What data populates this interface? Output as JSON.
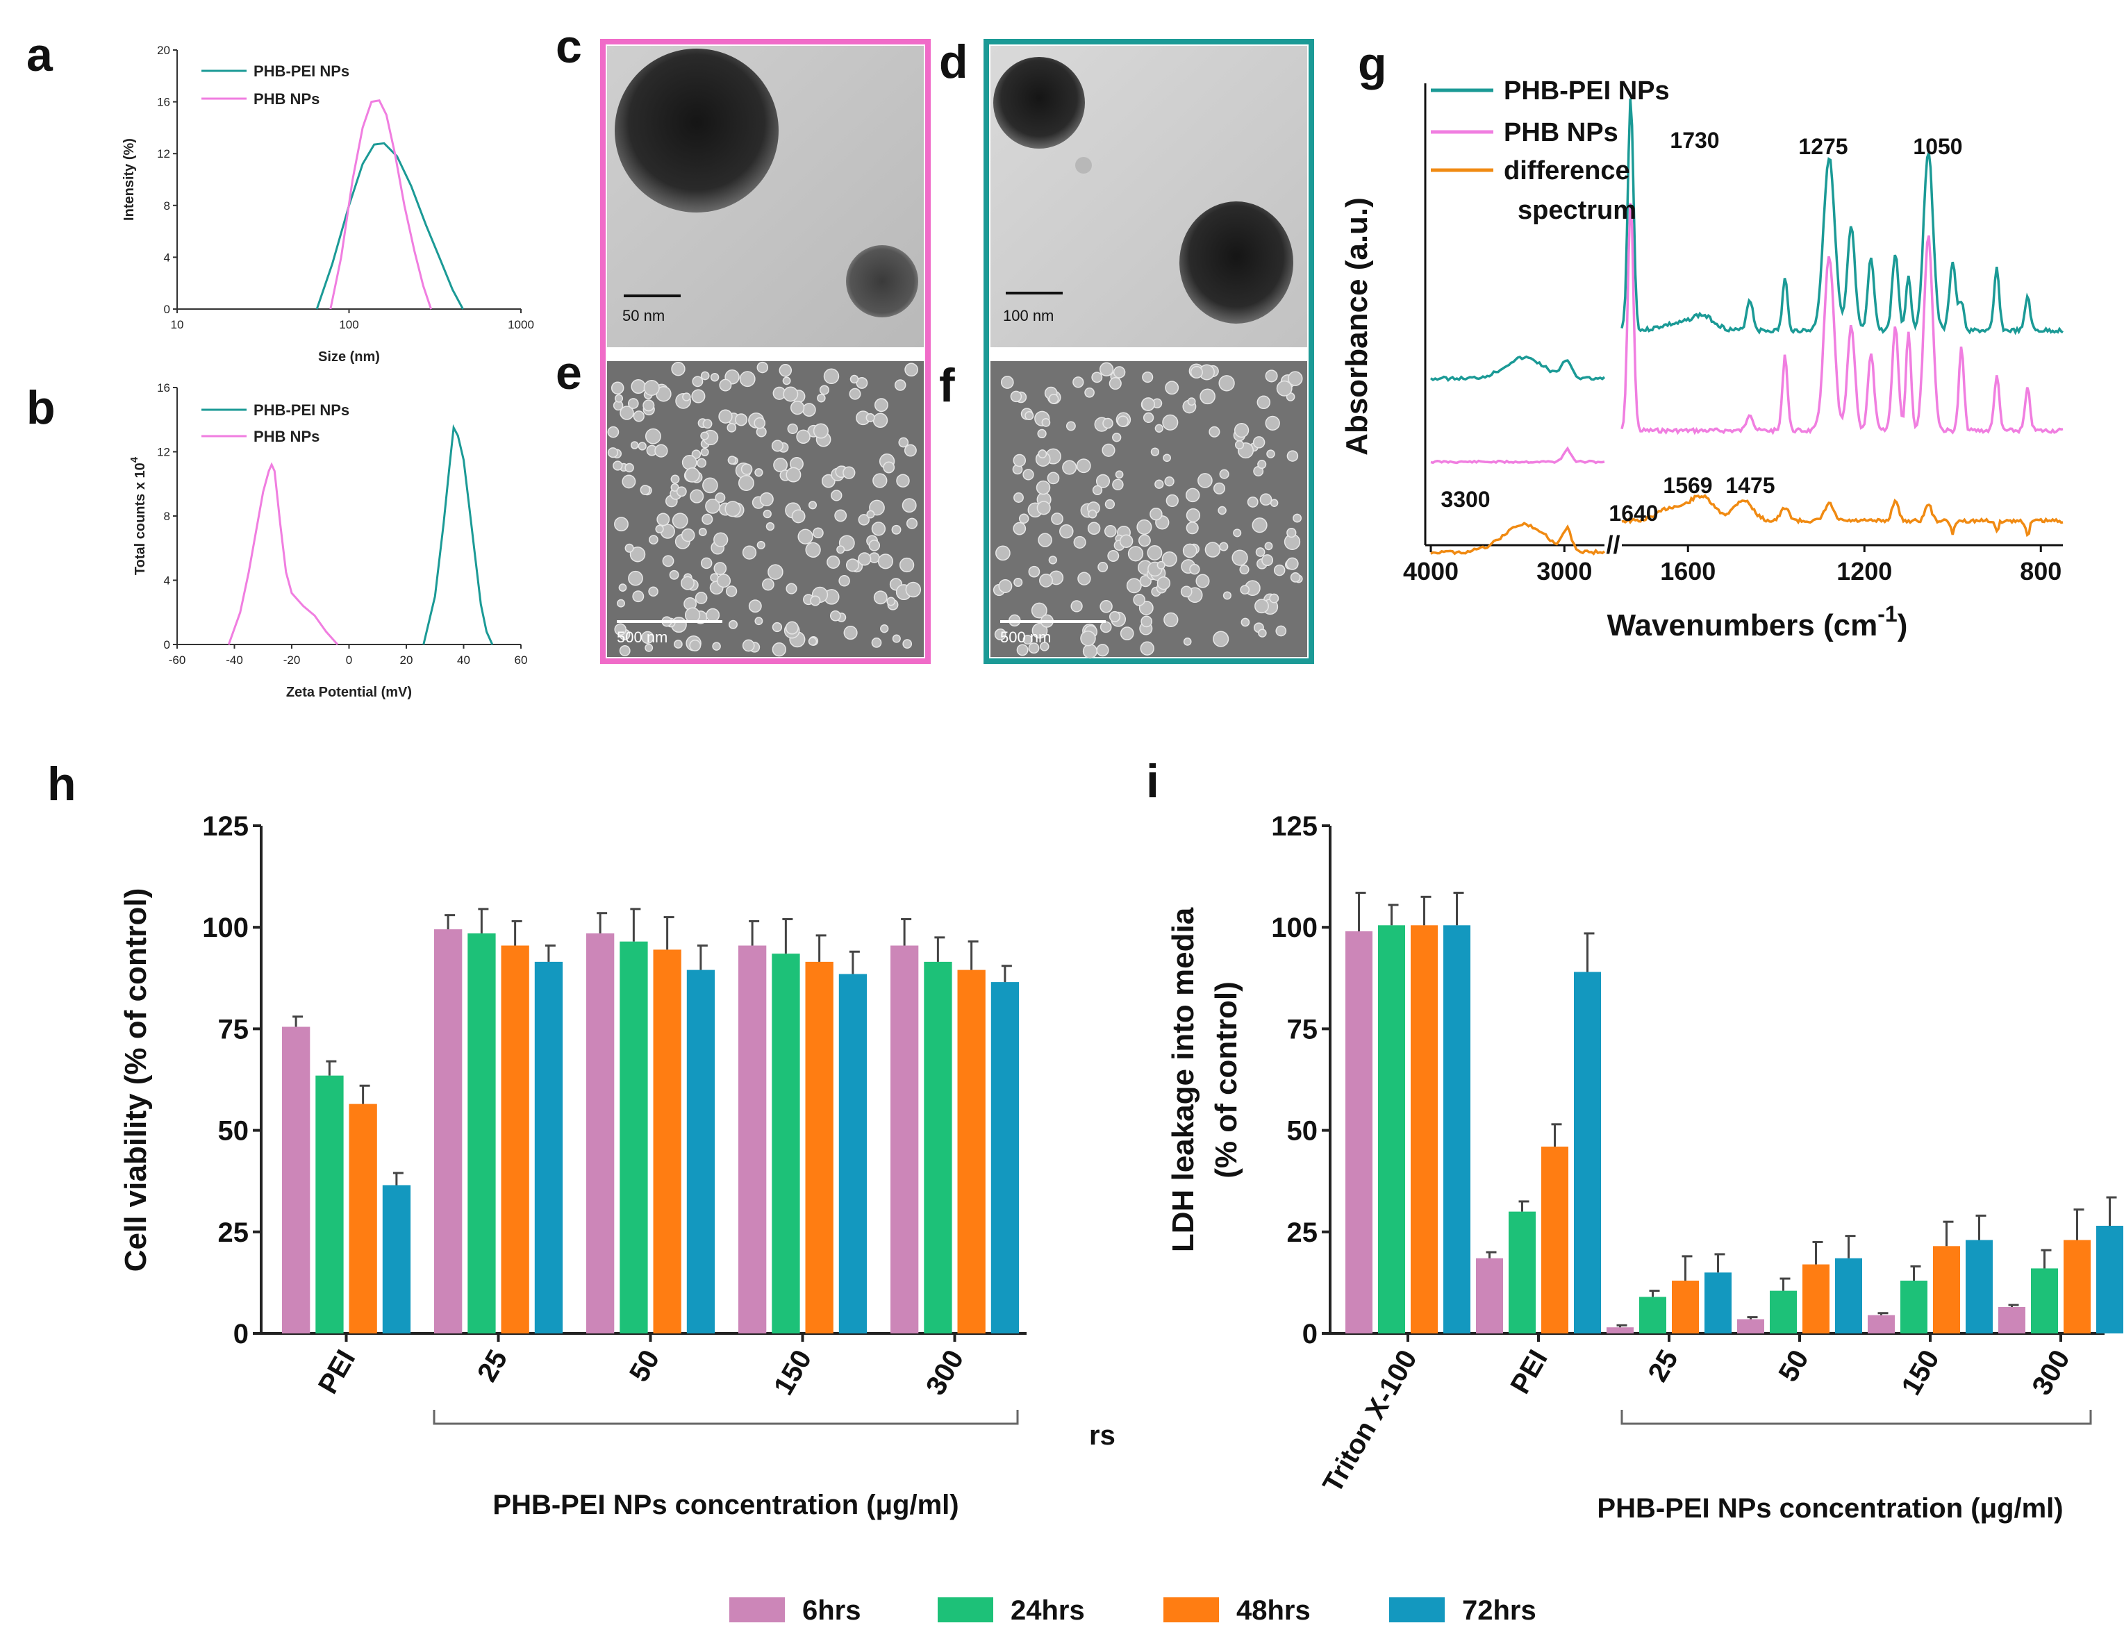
{
  "figure": {
    "panel_labels": {
      "a": "a",
      "b": "b",
      "c": "c",
      "d": "d",
      "e": "e",
      "f": "f",
      "g": "g",
      "h": "h",
      "i": "i"
    },
    "colors": {
      "peiNP": "#1b9a96",
      "phbNP": "#f07ee0",
      "diff": "#f08a12",
      "h6": "#cc86b8",
      "h24": "#1dc178",
      "h48": "#ff7d12",
      "h72": "#1398bf",
      "frame_c": "#f06bc8",
      "frame_d": "#1b9a96"
    }
  },
  "micro": {
    "c": {
      "scale": "50 nm"
    },
    "d": {
      "scale": "100 nm"
    },
    "e": {
      "scale": "500 nm"
    },
    "f": {
      "scale": "500 nm"
    }
  },
  "bars_legend": {
    "items": [
      "6hrs",
      "24hrs",
      "48hrs",
      "72hrs"
    ]
  },
  "stray_text": "rs",
  "chart_data": [
    {
      "panel": "a",
      "type": "line",
      "xscale": "log",
      "xlabel": "Size (nm)",
      "ylabel": "Intensity (%)",
      "xlim": [
        10,
        1000
      ],
      "ylim": [
        0,
        20
      ],
      "xticks": [
        "10",
        "100",
        "1000"
      ],
      "yticks": [
        "0",
        "4",
        "8",
        "12",
        "16",
        "20"
      ],
      "series": [
        {
          "name": "PHB-PEI NPs",
          "x": [
            65,
            80,
            100,
            120,
            140,
            160,
            190,
            230,
            280,
            340,
            400,
            460
          ],
          "y": [
            0,
            3.5,
            8.0,
            11.2,
            12.7,
            12.8,
            11.8,
            9.5,
            6.5,
            3.8,
            1.5,
            0
          ]
        },
        {
          "name": "PHB NPs",
          "x": [
            78,
            90,
            105,
            120,
            135,
            150,
            165,
            185,
            210,
            240,
            270,
            300
          ],
          "y": [
            0,
            4.0,
            10.0,
            14.0,
            16.0,
            16.1,
            15.0,
            12.0,
            8.0,
            4.5,
            1.8,
            0
          ]
        }
      ]
    },
    {
      "panel": "b",
      "type": "line",
      "xlabel": "Zeta Potential (mV)",
      "ylabel": "Total counts x 10",
      "ylabel_exp": "4",
      "xlim": [
        -60,
        60
      ],
      "ylim": [
        0,
        16
      ],
      "xticks": [
        "-60",
        "-40",
        "-20",
        "0",
        "20",
        "40",
        "60"
      ],
      "yticks": [
        "0",
        "4",
        "8",
        "12",
        "16"
      ],
      "series": [
        {
          "name": "PHB-PEI NPs",
          "x": [
            26,
            30,
            33,
            35,
            36.5,
            38,
            40,
            42,
            44,
            46,
            48,
            50
          ],
          "y": [
            0,
            3.0,
            7.5,
            11.0,
            13.5,
            13.0,
            11.5,
            8.5,
            5.5,
            2.5,
            0.8,
            0
          ]
        },
        {
          "name": "PHB NPs",
          "x": [
            -42,
            -38,
            -35,
            -32,
            -30,
            -28,
            -27,
            -26,
            -24,
            -22,
            -20,
            -16,
            -12,
            -8,
            -4
          ],
          "y": [
            0,
            2.0,
            4.5,
            7.5,
            9.5,
            10.8,
            11.2,
            10.8,
            7.5,
            4.5,
            3.2,
            2.4,
            1.8,
            0.8,
            0
          ]
        }
      ]
    },
    {
      "panel": "g",
      "type": "line",
      "xlabel": "Wavenumbers (cm",
      "xlabel_exp": "-1",
      "xlabel_end": ")",
      "ylabel": "Absorbance (a.u.)",
      "xticks": [
        "4000",
        "3000",
        "1600",
        "1200",
        "800"
      ],
      "break_mark": "//",
      "peak_labels": [
        "1730",
        "1275",
        "1050",
        "3300",
        "1640",
        "1569",
        "1475"
      ],
      "series": [
        {
          "name": "PHB-PEI NPs"
        },
        {
          "name": "PHB NPs"
        },
        {
          "name": "difference spectrum",
          "name_line1": "difference",
          "name_line2": "spectrum"
        }
      ]
    },
    {
      "panel": "h",
      "type": "bar",
      "ylabel": "Cell viability (% of control)",
      "xlabel": "PHB-PEI NPs concentration (μg/ml)",
      "ylim": [
        0,
        125
      ],
      "yticks": [
        "0",
        "25",
        "50",
        "75",
        "100",
        "125"
      ],
      "categories": [
        "PEI",
        "25",
        "50",
        "150",
        "300"
      ],
      "series": [
        {
          "name": "6hrs",
          "values": [
            75.5,
            99.5,
            98.5,
            95.5,
            95.5
          ],
          "errors": [
            2.5,
            3.5,
            5.0,
            6.0,
            6.5
          ]
        },
        {
          "name": "24hrs",
          "values": [
            63.5,
            98.5,
            96.5,
            93.5,
            91.5
          ],
          "errors": [
            3.5,
            6.0,
            8.0,
            8.5,
            6.0
          ]
        },
        {
          "name": "48hrs",
          "values": [
            56.5,
            95.5,
            94.5,
            91.5,
            89.5
          ],
          "errors": [
            4.5,
            6.0,
            8.0,
            6.5,
            7.0
          ]
        },
        {
          "name": "72hrs",
          "values": [
            36.5,
            91.5,
            89.5,
            88.5,
            86.5
          ],
          "errors": [
            3.0,
            4.0,
            6.0,
            5.5,
            4.0
          ]
        }
      ]
    },
    {
      "panel": "i",
      "type": "bar",
      "ylabel_line1": "LDH leakage into media",
      "ylabel_line2": "(% of control)",
      "xlabel": "PHB-PEI NPs concentration (μg/ml)",
      "ylim": [
        0,
        125
      ],
      "yticks": [
        "0",
        "25",
        "50",
        "75",
        "100",
        "125"
      ],
      "categories": [
        "Triton X-100",
        "PEI",
        "25",
        "50",
        "150",
        "300"
      ],
      "series": [
        {
          "name": "6hrs",
          "values": [
            99,
            18.5,
            1.5,
            3.5,
            4.5,
            6.5
          ],
          "errors": [
            9.5,
            1.5,
            0.5,
            0.5,
            0.5,
            0.5
          ]
        },
        {
          "name": "24hrs",
          "values": [
            100.5,
            30,
            9,
            10.5,
            13,
            16
          ],
          "errors": [
            5.0,
            2.5,
            1.5,
            3.0,
            3.5,
            4.5
          ]
        },
        {
          "name": "48hrs",
          "values": [
            100.5,
            46,
            13,
            17,
            21.5,
            23
          ],
          "errors": [
            7.0,
            5.5,
            6.0,
            5.5,
            6.0,
            7.5
          ]
        },
        {
          "name": "72hrs",
          "values": [
            100.5,
            89,
            15,
            18.5,
            23,
            26.5
          ],
          "errors": [
            8.0,
            9.5,
            4.5,
            5.5,
            6.0,
            7.0
          ]
        }
      ]
    }
  ]
}
